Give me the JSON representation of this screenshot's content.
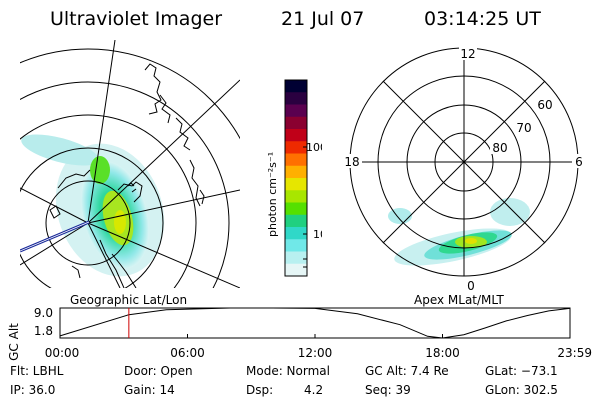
{
  "header": {
    "instrument": "Ultraviolet Imager",
    "date": "21 Jul 07",
    "time": "03:14:25 UT"
  },
  "left_panel": {
    "caption": "Geographic Lat/Lon"
  },
  "right_panel": {
    "caption": "Apex MLat/MLT",
    "mlt_labels": [
      "12",
      "18",
      "6",
      "0"
    ],
    "mlat_labels": [
      "60",
      "70",
      "80"
    ]
  },
  "colorbar": {
    "unit_label": "photon cm⁻²s⁻¹",
    "ticks": [
      "100",
      "10"
    ],
    "colors": [
      "#000033",
      "#2a0040",
      "#5a004f",
      "#8a0030",
      "#c00018",
      "#ee2a00",
      "#ff7000",
      "#ffb000",
      "#e6e600",
      "#a8e600",
      "#55e000",
      "#20d080",
      "#30d8c8",
      "#70e8e8",
      "#b8f0f0",
      "#e6f6f6"
    ]
  },
  "chart_data": {
    "type": "line",
    "ylabel": "GC Alt",
    "yticks": [
      "9.0",
      "1.8"
    ],
    "ylim": [
      1.8,
      9.0
    ],
    "xticks": [
      "00:00",
      "06:00",
      "12:00",
      "18:00",
      "23:59"
    ],
    "xlim_hours": [
      0,
      24
    ],
    "current_time_hours": 3.24,
    "series": [
      {
        "x": [
          0,
          3.24,
          5,
          8,
          10,
          12,
          14,
          16,
          17.3,
          18,
          19,
          20,
          21,
          22,
          23,
          23.98
        ],
        "y": [
          2.3,
          7.4,
          8.6,
          9.0,
          9.0,
          8.9,
          7.6,
          5.0,
          2.2,
          1.8,
          2.6,
          4.2,
          5.9,
          7.2,
          8.3,
          8.9
        ]
      }
    ]
  },
  "footer": {
    "row1": {
      "flt": "Flt: LBHL",
      "door": "Door: Open",
      "mode": "Mode: Normal",
      "gcalt": "GC Alt: 7.4 Re",
      "glat": "GLat: −73.1"
    },
    "row2": {
      "ip": "IP: 36.0",
      "gain": "Gain: 14",
      "dsp_label": "Dsp:",
      "dsp_value": "4.2",
      "seq": "Seq: 39",
      "glon": "GLon: 302.5"
    }
  }
}
